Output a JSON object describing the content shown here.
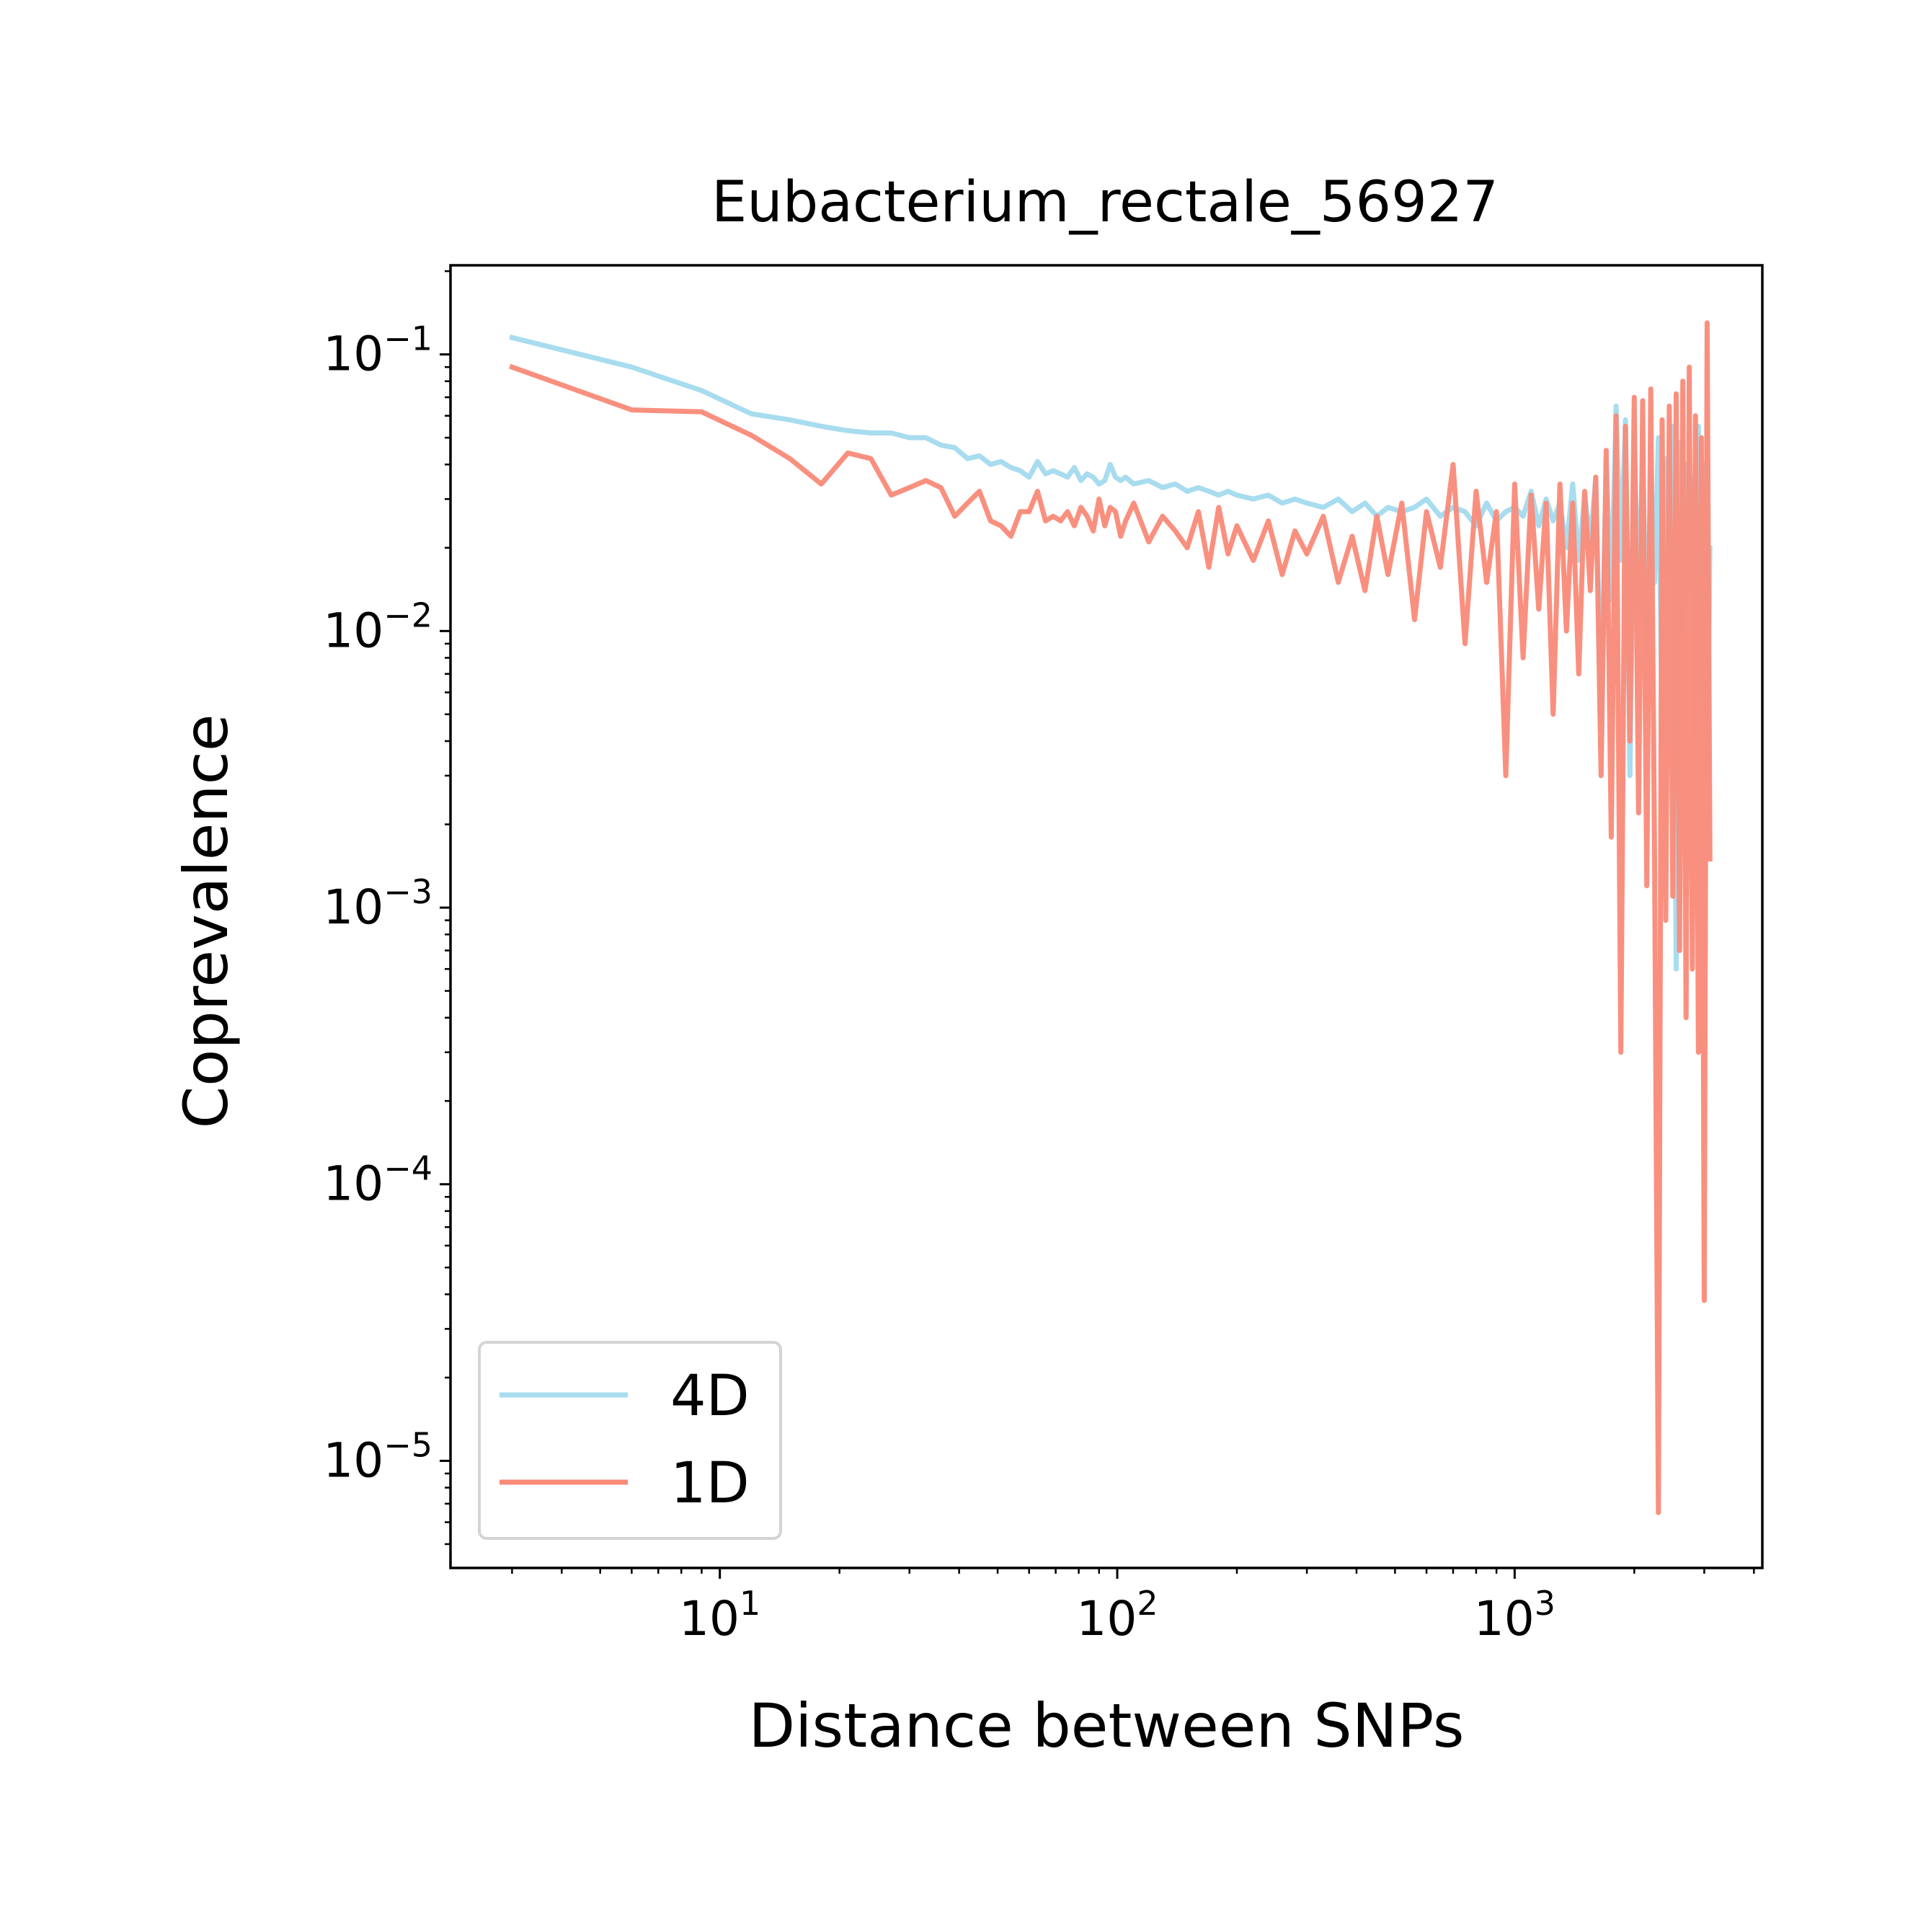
{
  "chart_data": {
    "type": "line",
    "title": "Eubacterium_rectale_56927",
    "xlabel": "Distance between SNPs",
    "ylabel": "Coprevalence",
    "xscale": "log",
    "yscale": "log",
    "xlim": [
      2.1,
      4200
    ],
    "ylim": [
      4.1e-06,
      0.21
    ],
    "x_ticks": [
      {
        "value": 10,
        "base": "10",
        "exp": "1"
      },
      {
        "value": 100,
        "base": "10",
        "exp": "2"
      },
      {
        "value": 1000,
        "base": "10",
        "exp": "3"
      }
    ],
    "y_ticks": [
      {
        "value": 0.1,
        "base": "10",
        "exp": "−1"
      },
      {
        "value": 0.01,
        "base": "10",
        "exp": "−2"
      },
      {
        "value": 0.001,
        "base": "10",
        "exp": "−3"
      },
      {
        "value": 0.0001,
        "base": "10",
        "exp": "−4"
      },
      {
        "value": 1e-05,
        "base": "10",
        "exp": "−5"
      }
    ],
    "grid": false,
    "legend_position": "lower-left",
    "series": [
      {
        "name": "4D",
        "color": "#a8dcef",
        "x": [
          3,
          6,
          9,
          12,
          15,
          18,
          21,
          24,
          27,
          30,
          33,
          36,
          39,
          42,
          45,
          48,
          51,
          54,
          57,
          60,
          63,
          66,
          69,
          72,
          75,
          78,
          81,
          84,
          87,
          90,
          93,
          96,
          99,
          102,
          105,
          110,
          120,
          130,
          140,
          150,
          160,
          170,
          180,
          190,
          200,
          220,
          240,
          260,
          280,
          300,
          330,
          360,
          390,
          420,
          450,
          480,
          520,
          560,
          600,
          650,
          700,
          750,
          800,
          850,
          900,
          950,
          1000,
          1050,
          1100,
          1150,
          1200,
          1250,
          1300,
          1350,
          1400,
          1450,
          1500,
          1550,
          1600,
          1650,
          1700,
          1750,
          1800,
          1850,
          1900,
          1950,
          2000,
          2050,
          2100,
          2150,
          2200,
          2250,
          2300,
          2350,
          2400,
          2450,
          2500,
          2550,
          2600,
          2650,
          2700,
          2750,
          2800,
          2850,
          2900,
          2950,
          3000,
          3050,
          3100
        ],
        "y": [
          0.115,
          0.09,
          0.074,
          0.061,
          0.058,
          0.055,
          0.053,
          0.052,
          0.052,
          0.05,
          0.05,
          0.047,
          0.046,
          0.042,
          0.043,
          0.04,
          0.041,
          0.039,
          0.038,
          0.036,
          0.041,
          0.037,
          0.038,
          0.037,
          0.036,
          0.039,
          0.035,
          0.037,
          0.036,
          0.034,
          0.035,
          0.04,
          0.036,
          0.035,
          0.036,
          0.034,
          0.035,
          0.033,
          0.034,
          0.032,
          0.033,
          0.032,
          0.031,
          0.032,
          0.031,
          0.03,
          0.031,
          0.029,
          0.03,
          0.029,
          0.028,
          0.03,
          0.027,
          0.029,
          0.026,
          0.028,
          0.027,
          0.028,
          0.03,
          0.026,
          0.028,
          0.027,
          0.024,
          0.029,
          0.025,
          0.027,
          0.028,
          0.026,
          0.032,
          0.024,
          0.03,
          0.025,
          0.029,
          0.02,
          0.034,
          0.018,
          0.031,
          0.021,
          0.036,
          0.005,
          0.042,
          0.013,
          0.065,
          0.018,
          0.058,
          0.003,
          0.05,
          0.012,
          0.045,
          0.008,
          0.038,
          0.015,
          0.05,
          0.004,
          0.042,
          0.016,
          0.055,
          0.0006,
          0.048,
          0.01,
          0.04,
          0.014,
          0.036,
          0.004,
          0.055,
          0.006,
          0.04,
          0.003,
          0.02
        ]
      },
      {
        "name": "1D",
        "color": "#f98a78",
        "x": [
          3,
          6,
          9,
          12,
          15,
          18,
          21,
          24,
          27,
          30,
          33,
          36,
          39,
          42,
          45,
          48,
          51,
          54,
          57,
          60,
          63,
          66,
          69,
          72,
          75,
          78,
          81,
          84,
          87,
          90,
          93,
          96,
          99,
          102,
          105,
          110,
          120,
          130,
          140,
          150,
          160,
          170,
          180,
          190,
          200,
          220,
          240,
          260,
          280,
          300,
          330,
          360,
          390,
          420,
          450,
          480,
          520,
          560,
          600,
          650,
          700,
          750,
          800,
          850,
          900,
          950,
          1000,
          1050,
          1100,
          1150,
          1200,
          1250,
          1300,
          1350,
          1400,
          1450,
          1500,
          1550,
          1600,
          1650,
          1700,
          1750,
          1800,
          1850,
          1900,
          1950,
          2000,
          2050,
          2100,
          2150,
          2200,
          2250,
          2300,
          2350,
          2400,
          2450,
          2500,
          2550,
          2600,
          2650,
          2700,
          2750,
          2800,
          2850,
          2900,
          2950,
          3000,
          3050,
          3100
        ],
        "y": [
          0.09,
          0.063,
          0.062,
          0.051,
          0.042,
          0.034,
          0.044,
          0.042,
          0.031,
          0.033,
          0.035,
          0.033,
          0.026,
          0.029,
          0.032,
          0.025,
          0.024,
          0.022,
          0.027,
          0.027,
          0.032,
          0.025,
          0.026,
          0.025,
          0.027,
          0.024,
          0.028,
          0.026,
          0.023,
          0.03,
          0.024,
          0.028,
          0.027,
          0.022,
          0.025,
          0.029,
          0.021,
          0.026,
          0.023,
          0.02,
          0.027,
          0.017,
          0.028,
          0.019,
          0.024,
          0.018,
          0.025,
          0.016,
          0.023,
          0.019,
          0.026,
          0.015,
          0.022,
          0.014,
          0.026,
          0.016,
          0.029,
          0.011,
          0.027,
          0.017,
          0.04,
          0.009,
          0.032,
          0.015,
          0.027,
          0.003,
          0.034,
          0.008,
          0.031,
          0.012,
          0.029,
          0.005,
          0.034,
          0.01,
          0.029,
          0.007,
          0.032,
          0.014,
          0.036,
          0.003,
          0.045,
          0.0018,
          0.06,
          0.0003,
          0.055,
          0.004,
          0.07,
          0.0022,
          0.068,
          0.0012,
          0.075,
          0.0015,
          6.5e-06,
          0.058,
          0.0009,
          0.065,
          0.0011,
          0.072,
          0.0007,
          0.08,
          0.0004,
          0.09,
          0.0006,
          0.06,
          0.0003,
          0.05,
          3.8e-05,
          0.13,
          0.0015
        ]
      }
    ]
  }
}
